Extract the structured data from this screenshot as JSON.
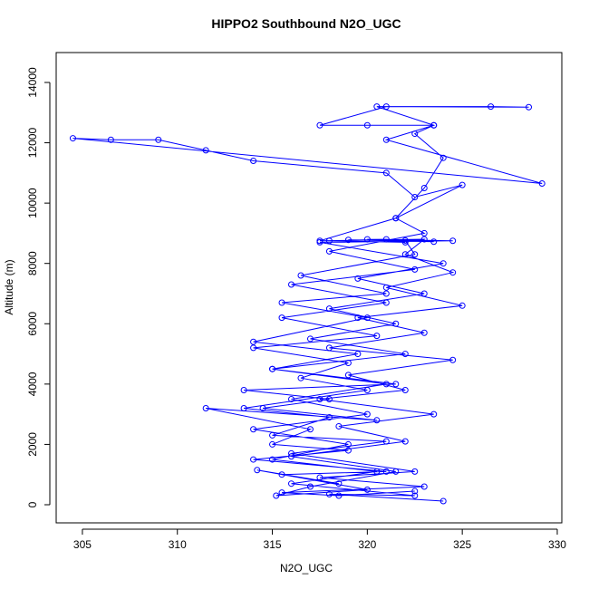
{
  "chart_data": {
    "type": "line",
    "title": "HIPPO2 Southbound N2O_UGC",
    "x_label": "N2O_UGC",
    "y_label": "Altitude (m)",
    "series": [
      {
        "color": "#0000ff",
        "marker": "circle",
        "x": [
          324.0,
          318.0,
          322.5,
          316.0,
          320.5,
          315.0,
          319.0,
          314.0,
          320.0,
          316.0,
          321.0,
          315.0,
          322.0,
          317.0,
          321.5,
          318.0,
          323.0,
          319.5,
          324.0,
          317.5,
          324.5,
          320.0,
          322.0,
          318.0,
          321.0,
          323.5,
          319.0,
          322.0,
          322.5,
          316.5,
          321.0,
          315.5,
          320.0,
          314.0,
          319.5,
          315.0,
          321.5,
          313.5,
          318.0,
          314.5,
          320.5,
          311.5,
          317.0,
          315.0,
          319.0,
          314.0,
          321.0,
          315.5,
          318.5,
          314.2,
          320.0,
          315.2,
          317.0,
          321.5,
          316.0,
          322.0,
          318.5,
          323.5,
          317.5,
          322.0,
          319.0,
          324.5,
          318.0,
          323.0,
          319.5,
          325.0,
          321.0,
          324.5,
          322.0,
          323.0,
          317.5,
          321.5,
          323.0,
          324.0,
          322.5,
          323.5,
          320.0,
          317.5,
          321.0,
          328.5,
          326.5,
          320.5,
          323.5,
          321.0,
          329.2,
          304.5,
          306.5,
          309.0,
          311.5,
          314.0,
          321.0,
          322.5,
          325.0,
          321.5,
          323.0,
          318.0,
          322.5,
          316.0,
          321.0,
          315.5,
          320.5,
          314.0,
          319.0,
          316.5,
          320.0,
          313.5,
          318.0,
          315.0,
          321.0,
          316.0,
          322.5,
          317.5,
          323.0,
          315.5,
          318.5,
          322.5
        ],
        "values": [
          120,
          350,
          300,
          700,
          1100,
          1500,
          2000,
          2500,
          3000,
          3500,
          4000,
          4500,
          5000,
          5500,
          6000,
          6500,
          7000,
          7500,
          8000,
          8700,
          8750,
          8800,
          8700,
          8750,
          8800,
          8720,
          8780,
          8760,
          8300,
          7600,
          7000,
          6700,
          6200,
          5400,
          5000,
          4500,
          4000,
          3800,
          3500,
          3200,
          2800,
          3200,
          2500,
          2000,
          1800,
          1500,
          1100,
          1000,
          700,
          1150,
          500,
          300,
          600,
          1100,
          1600,
          2100,
          2600,
          3000,
          3500,
          3800,
          4300,
          4800,
          5200,
          5700,
          6200,
          6600,
          7200,
          7700,
          8300,
          8800,
          8750,
          9500,
          10500,
          11500,
          12300,
          12580,
          12580,
          12580,
          13200,
          13180,
          13200,
          13200,
          12580,
          12100,
          10650,
          12150,
          12100,
          12100,
          11750,
          11400,
          11000,
          10200,
          10600,
          9500,
          9000,
          8400,
          7800,
          7300,
          6700,
          6200,
          5600,
          5200,
          4700,
          4200,
          3800,
          3200,
          2900,
          2300,
          2100,
          1700,
          1100,
          900,
          600,
          400,
          300,
          450
        ]
      }
    ],
    "xlim": [
      303.62,
      330.24
    ],
    "ylim": [
      -601,
      14991
    ],
    "xticks": [
      305,
      310,
      315,
      320,
      325,
      330
    ],
    "yticks": [
      0,
      2000,
      4000,
      6000,
      8000,
      10000,
      12000,
      14000
    ]
  }
}
